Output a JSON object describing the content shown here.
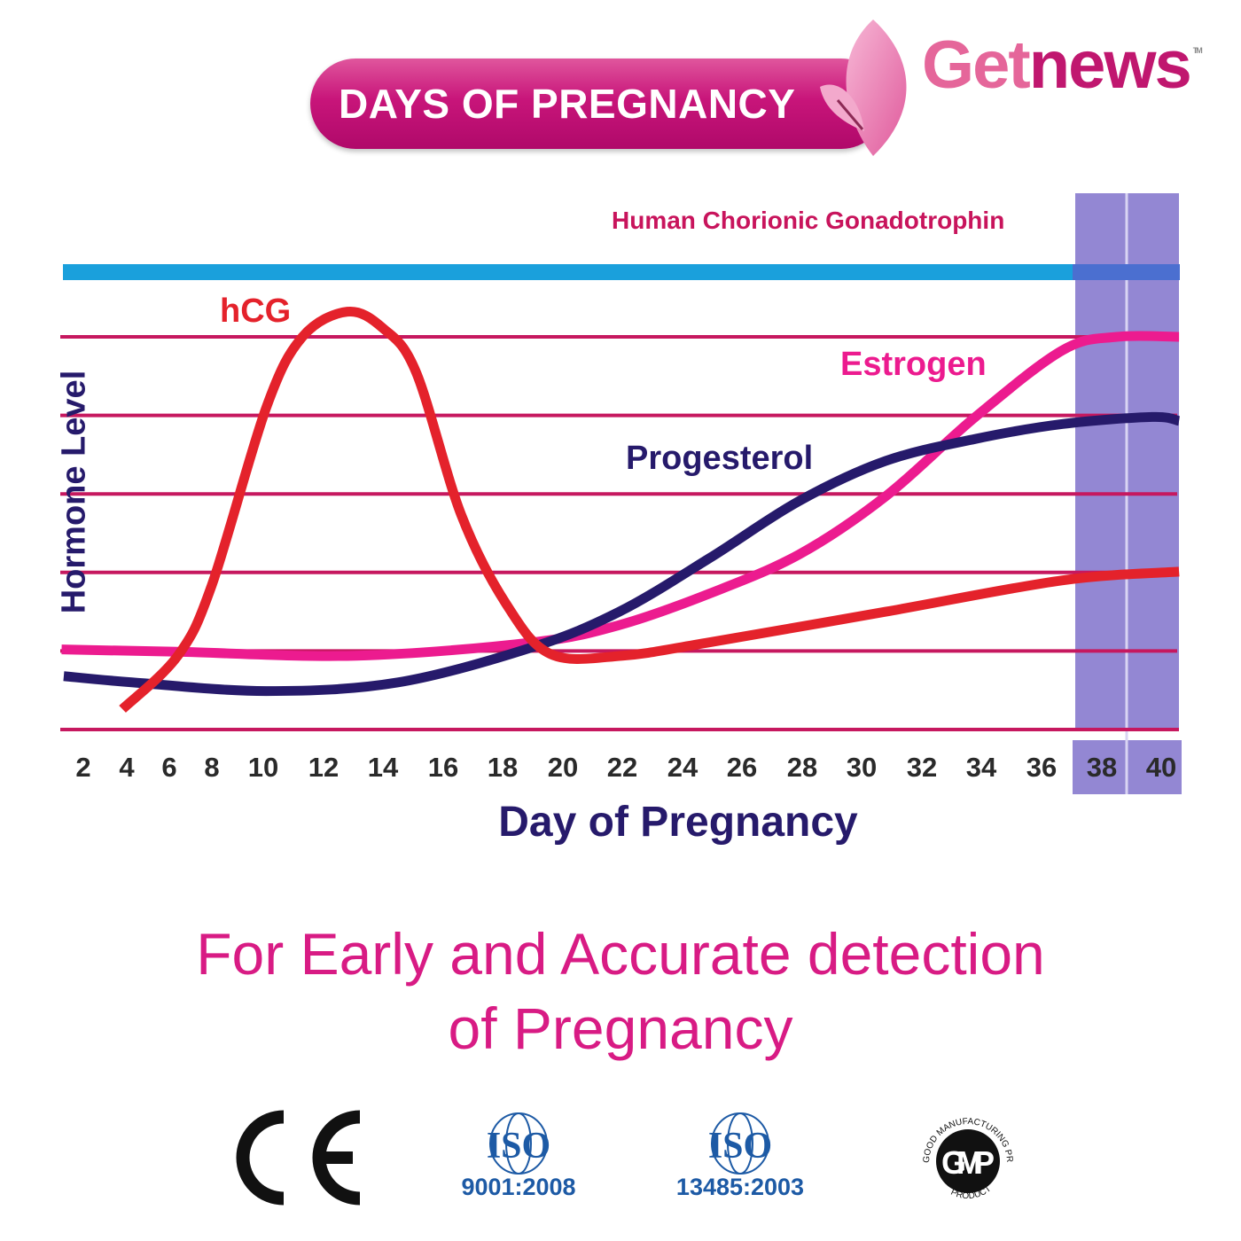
{
  "header": {
    "title": "DAYS OF PREGNANCY",
    "brand_part1": "Get",
    "brand_part2": "news",
    "trademark": "TM"
  },
  "colors": {
    "hcg": "#e4222b",
    "estrogen": "#ec1b8f",
    "progesterol": "#261a6b",
    "gridline": "#c6185f",
    "blue_bar": "#1aa0dc",
    "band": "#9387d3",
    "pill": "#c8157a"
  },
  "chart_data": {
    "type": "line",
    "title": "Human Chorionic Gonadotrophin",
    "xlabel": "Day of Pregnancy",
    "ylabel": "Hormone Level",
    "x_ticks": [
      2,
      4,
      6,
      8,
      10,
      12,
      14,
      16,
      18,
      20,
      22,
      24,
      26,
      28,
      30,
      32,
      34,
      36,
      38,
      40
    ],
    "highlight_days": [
      38,
      40
    ],
    "ylim": [
      0,
      5.5
    ],
    "grid": true,
    "series": [
      {
        "name": "hCG",
        "color": "#e4222b",
        "points": [
          [
            3.8,
            0.26
          ],
          [
            6.4,
            0.94
          ],
          [
            8,
            1.84
          ],
          [
            10.1,
            4.1
          ],
          [
            11.3,
            5.0
          ],
          [
            12.8,
            5.32
          ],
          [
            14,
            5.11
          ],
          [
            15.1,
            4.55
          ],
          [
            16.6,
            2.74
          ],
          [
            18.1,
            1.61
          ],
          [
            19.6,
            0.96
          ],
          [
            22,
            0.94
          ],
          [
            24.9,
            1.11
          ],
          [
            30.8,
            1.5
          ],
          [
            36.7,
            1.9
          ],
          [
            40.6,
            2.01
          ]
        ]
      },
      {
        "name": "Estrogen",
        "color": "#ec1b8f",
        "points": [
          [
            1.0,
            1.02
          ],
          [
            6.4,
            0.99
          ],
          [
            13.1,
            0.94
          ],
          [
            19,
            1.11
          ],
          [
            21.9,
            1.33
          ],
          [
            24.9,
            1.73
          ],
          [
            27.9,
            2.23
          ],
          [
            30.8,
            2.97
          ],
          [
            33.8,
            3.98
          ],
          [
            36.7,
            4.83
          ],
          [
            38.5,
            5.0
          ],
          [
            40.6,
            5.0
          ]
        ]
      },
      {
        "name": "Progesterol",
        "color": "#261a6b",
        "points": [
          [
            1.1,
            0.68
          ],
          [
            4.3,
            0.6
          ],
          [
            10.1,
            0.49
          ],
          [
            14.5,
            0.6
          ],
          [
            19,
            1.05
          ],
          [
            21.9,
            1.5
          ],
          [
            24.9,
            2.18
          ],
          [
            27.9,
            2.91
          ],
          [
            30.8,
            3.42
          ],
          [
            33.8,
            3.7
          ],
          [
            36.7,
            3.89
          ],
          [
            39.7,
            3.98
          ],
          [
            40.6,
            3.93
          ]
        ]
      }
    ]
  },
  "tagline": {
    "line1": "For Early and Accurate detection",
    "line2": "of Pregnancy"
  },
  "certifications": [
    {
      "mark": "CE"
    },
    {
      "mark": "ISO",
      "code": "9001:2008"
    },
    {
      "mark": "ISO",
      "code": "13485:2003"
    },
    {
      "mark": "GMP",
      "ring_top": "GOOD MANUFACTURING PRACTICE",
      "ring_bottom": "PRODUCT"
    }
  ]
}
